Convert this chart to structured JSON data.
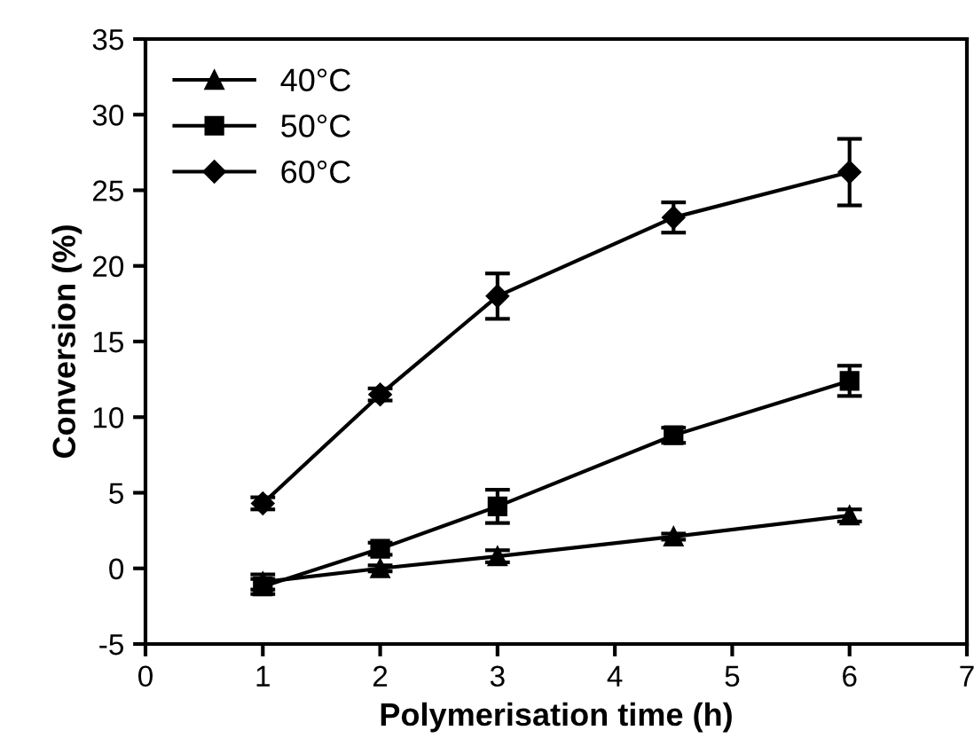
{
  "chart_data": {
    "type": "line",
    "xlabel": "Polymerisation time (h)",
    "ylabel": "Conversion (%)",
    "x": [
      1,
      2,
      3,
      4.5,
      6
    ],
    "series": [
      {
        "name": "40°C",
        "color": "#000000",
        "marker": "triangle",
        "values": [
          -0.9,
          0,
          0.8,
          2.1,
          3.5
        ],
        "errors": [
          0.5,
          0.2,
          0.4,
          0.2,
          0.4
        ]
      },
      {
        "name": "50°C",
        "color": "#000000",
        "marker": "square",
        "values": [
          -1.2,
          1.3,
          4.1,
          8.8,
          12.4
        ],
        "errors": [
          0.5,
          0.4,
          1.1,
          0.5,
          1.0
        ]
      },
      {
        "name": "60°C",
        "color": "#000000",
        "marker": "diamond",
        "values": [
          4.3,
          11.5,
          18,
          23.2,
          26.2
        ],
        "errors": [
          0.4,
          0.4,
          1.5,
          1.0,
          2.2
        ]
      }
    ],
    "xlim": [
      0,
      7
    ],
    "xticks": [
      0,
      1,
      2,
      3,
      4,
      5,
      6,
      7
    ],
    "ylim": [
      -5,
      35
    ],
    "yticks": [
      -5,
      0,
      5,
      10,
      15,
      20,
      25,
      30,
      35
    ],
    "grid": false,
    "legend": "top left",
    "line_style": "solid"
  }
}
